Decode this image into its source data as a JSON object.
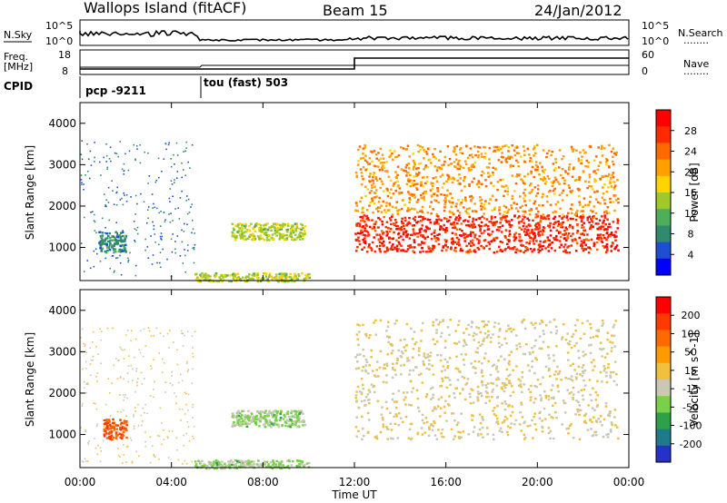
{
  "header": {
    "station": "Wallops Island (fitACF)",
    "beam": "Beam 15",
    "date": "24/Jan/2012"
  },
  "status_panels": {
    "nsky": {
      "label": "N.Sky",
      "ticks": [
        "10^5",
        "10^0"
      ],
      "right_label": "N.Search",
      "right_ticks": [
        "10^5",
        "10^0"
      ],
      "right_dots": "........"
    },
    "freq": {
      "label_line1": "Freq.",
      "label_line2": "[MHz]",
      "ticks": [
        "18",
        "8"
      ],
      "right_label": "Nave",
      "right_ticks": [
        "60",
        "0"
      ],
      "right_dots": "........"
    },
    "cpid": {
      "label": "CPID",
      "segments": [
        {
          "label": "pcp -9211",
          "start_hour": 0
        },
        {
          "label": "tou (fast) 503",
          "start_hour": 5.1
        }
      ]
    }
  },
  "colors": {
    "power_scale": [
      "#0000ff",
      "#1e4fd0",
      "#2f8a6e",
      "#4fae5a",
      "#a0c82a",
      "#ffd400",
      "#ffa000",
      "#ff6a00",
      "#ff2a00",
      "#ff0000"
    ],
    "velocity_scale": [
      "#2432c8",
      "#1f7a8c",
      "#2fa04a",
      "#7ad04a",
      "#c8c8b4",
      "#f0c040",
      "#ff9a00",
      "#ff6a00",
      "#ff3a00",
      "#ff0000"
    ]
  },
  "chart_data": [
    {
      "type": "heatmap",
      "title": "",
      "xlabel": "",
      "ylabel": "Slant Range [km]",
      "xlim": [
        0,
        24
      ],
      "ylim": [
        200,
        4500
      ],
      "x_ticks": [
        "00:00",
        "04:00",
        "08:00",
        "12:00",
        "16:00",
        "20:00",
        "00:00"
      ],
      "y_ticks": [
        1000,
        2000,
        3000,
        4000
      ],
      "colorbar": {
        "label": "Power [dB]",
        "ticks": [
          "4",
          "8",
          "12",
          "16",
          "20",
          "24",
          "28"
        ],
        "range": [
          0,
          30
        ]
      },
      "regions": [
        {
          "x": [
            0.0,
            5.0
          ],
          "y": [
            300,
            3600
          ],
          "value": 6,
          "density": "sparse"
        },
        {
          "x": [
            0.8,
            2.0
          ],
          "y": [
            900,
            1400
          ],
          "value": 8
        },
        {
          "x": [
            6.6,
            9.8
          ],
          "y": [
            1200,
            1600
          ],
          "value": 14
        },
        {
          "x": [
            5.0,
            10.0
          ],
          "y": [
            200,
            400
          ],
          "value": 14
        },
        {
          "x": [
            12.0,
            23.5
          ],
          "y": [
            900,
            1800
          ],
          "value": 26
        },
        {
          "x": [
            12.0,
            23.5
          ],
          "y": [
            1800,
            3500
          ],
          "value": 20
        }
      ]
    },
    {
      "type": "heatmap",
      "title": "",
      "xlabel": "Time UT",
      "ylabel": "Slant Range [km]",
      "xlim": [
        0,
        24
      ],
      "ylim": [
        200,
        4500
      ],
      "x_ticks": [
        "00:00",
        "04:00",
        "08:00",
        "12:00",
        "16:00",
        "20:00",
        "00:00"
      ],
      "y_ticks": [
        1000,
        2000,
        3000,
        4000
      ],
      "colorbar": {
        "label": "Velocity [m s^-1]",
        "ticks": [
          "200",
          "100",
          "50",
          "15",
          "-15",
          "-50",
          "-100",
          "-200"
        ],
        "range": [
          -250,
          250
        ]
      },
      "regions": [
        {
          "x": [
            0.0,
            5.0
          ],
          "y": [
            300,
            3600
          ],
          "value": 0,
          "density": "sparse"
        },
        {
          "x": [
            1.0,
            2.0
          ],
          "y": [
            900,
            1400
          ],
          "value": 150
        },
        {
          "x": [
            6.6,
            9.8
          ],
          "y": [
            1200,
            1600
          ],
          "value": -60
        },
        {
          "x": [
            5.0,
            10.0
          ],
          "y": [
            200,
            400
          ],
          "value": -60
        },
        {
          "x": [
            12.0,
            23.5
          ],
          "y": [
            900,
            3800
          ],
          "value": 0
        }
      ]
    }
  ]
}
